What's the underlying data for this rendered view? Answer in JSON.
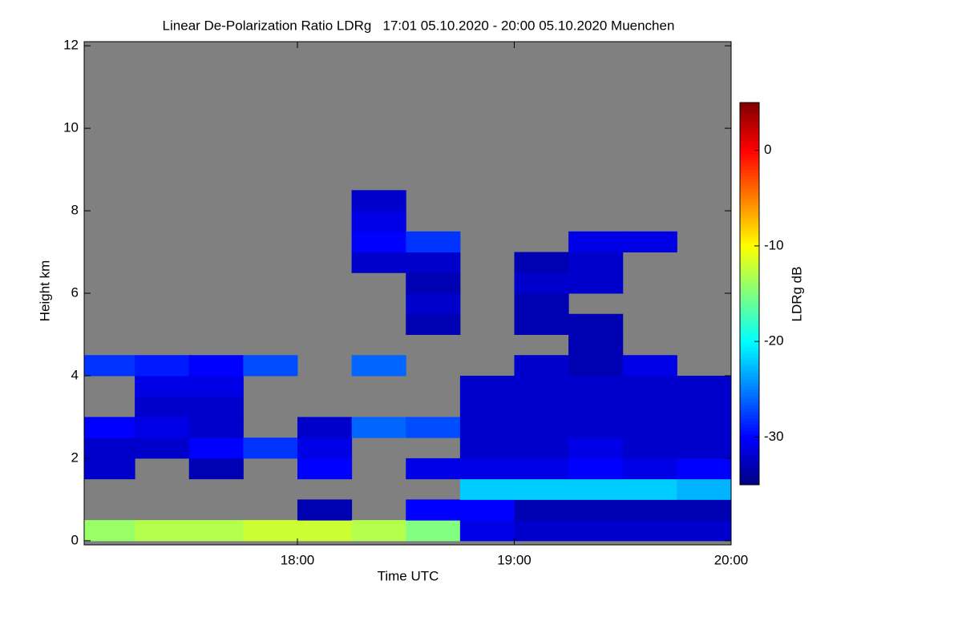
{
  "chart_data": {
    "type": "heatmap",
    "title": "Linear De-Polarization Ratio LDRg   17:01 05.10.2020 - 20:00 05.10.2020 Muenchen",
    "x_label": "Time UTC",
    "y_label": "Height km",
    "colorbar_label": "LDRg dB",
    "colormap": "jet",
    "background_color": "#808080",
    "xlim": [
      17.0167,
      20.0
    ],
    "xticks": [
      {
        "value": 18,
        "label": "18:00"
      },
      {
        "value": 19,
        "label": "19:00"
      },
      {
        "value": 20,
        "label": "20:00"
      }
    ],
    "ylim": [
      -0.1,
      12.1
    ],
    "yticks": [
      0,
      2,
      4,
      6,
      8,
      10,
      12
    ],
    "zlim": [
      -35,
      5
    ],
    "zticks": [
      0,
      -10,
      -20,
      -30
    ],
    "xbins": [
      17,
      17.25,
      17.5,
      17.75,
      18,
      18.25,
      18.5,
      18.75,
      19,
      19.25,
      19.5,
      19.75,
      20
    ],
    "ybins": [
      0,
      0.5,
      1,
      1.5,
      2,
      2.5,
      3,
      3.5,
      4,
      4.5,
      5,
      5.5,
      6,
      6.5,
      7,
      7.5,
      8,
      8.5,
      9,
      9.5,
      10,
      10.5,
      11,
      11.5,
      12
    ],
    "z": [
      [
        -14,
        null,
        null,
        -32,
        -32,
        -30,
        null,
        null,
        -28,
        null,
        null,
        null,
        null,
        null,
        null,
        null,
        null,
        null,
        null,
        null,
        null,
        null,
        null,
        null
      ],
      [
        -13,
        null,
        null,
        null,
        -32,
        -31,
        -32,
        -31,
        -29,
        null,
        null,
        null,
        null,
        null,
        null,
        null,
        null,
        null,
        null,
        null,
        null,
        null,
        null,
        null
      ],
      [
        -13,
        null,
        null,
        -33,
        -30,
        -32,
        -32,
        -31,
        -30,
        null,
        null,
        null,
        null,
        null,
        null,
        null,
        null,
        null,
        null,
        null,
        null,
        null,
        null,
        null
      ],
      [
        -12,
        null,
        null,
        null,
        -28,
        null,
        null,
        null,
        -27,
        null,
        null,
        null,
        null,
        null,
        null,
        null,
        null,
        null,
        null,
        null,
        null,
        null,
        null,
        null
      ],
      [
        -12,
        -33,
        null,
        -30,
        -31,
        -32,
        null,
        null,
        null,
        null,
        null,
        null,
        null,
        null,
        null,
        null,
        null,
        null,
        null,
        null,
        null,
        null,
        null,
        null
      ],
      [
        -13,
        null,
        null,
        null,
        null,
        -26,
        null,
        null,
        -26,
        null,
        null,
        null,
        null,
        -32,
        -30,
        -31,
        -32,
        null,
        null,
        null,
        null,
        null,
        null,
        null
      ],
      [
        -15,
        -30,
        null,
        -31,
        null,
        -27,
        null,
        null,
        null,
        null,
        -33,
        -32,
        -33,
        -32,
        -28,
        null,
        null,
        null,
        null,
        null,
        null,
        null,
        null,
        null
      ],
      [
        -31,
        -30,
        -22,
        -31,
        -32,
        -32,
        -32,
        -32,
        null,
        null,
        null,
        null,
        null,
        null,
        null,
        null,
        null,
        null,
        null,
        null,
        null,
        null,
        null,
        null
      ],
      [
        -32,
        -33,
        -22,
        -31,
        -32,
        -32,
        -32,
        -32,
        -32,
        null,
        -33,
        -33,
        -32,
        -33,
        null,
        null,
        null,
        null,
        null,
        null,
        null,
        null,
        null,
        null
      ],
      [
        -32,
        -33,
        -22,
        -30,
        -31,
        -32,
        -32,
        -32,
        -33,
        -33,
        -33,
        null,
        -32,
        -32,
        -31,
        null,
        null,
        null,
        null,
        null,
        null,
        null,
        null,
        null
      ],
      [
        -32,
        -33,
        -22,
        -31,
        -32,
        -32,
        -32,
        -32,
        -31,
        null,
        null,
        null,
        null,
        null,
        -31,
        null,
        null,
        null,
        null,
        null,
        null,
        null,
        null,
        null
      ],
      [
        -32,
        -33,
        -23,
        -30,
        -32,
        -32,
        -32,
        -32,
        null,
        null,
        null,
        null,
        null,
        null,
        null,
        null,
        null,
        null,
        null,
        null,
        null,
        null,
        null,
        null
      ]
    ]
  }
}
